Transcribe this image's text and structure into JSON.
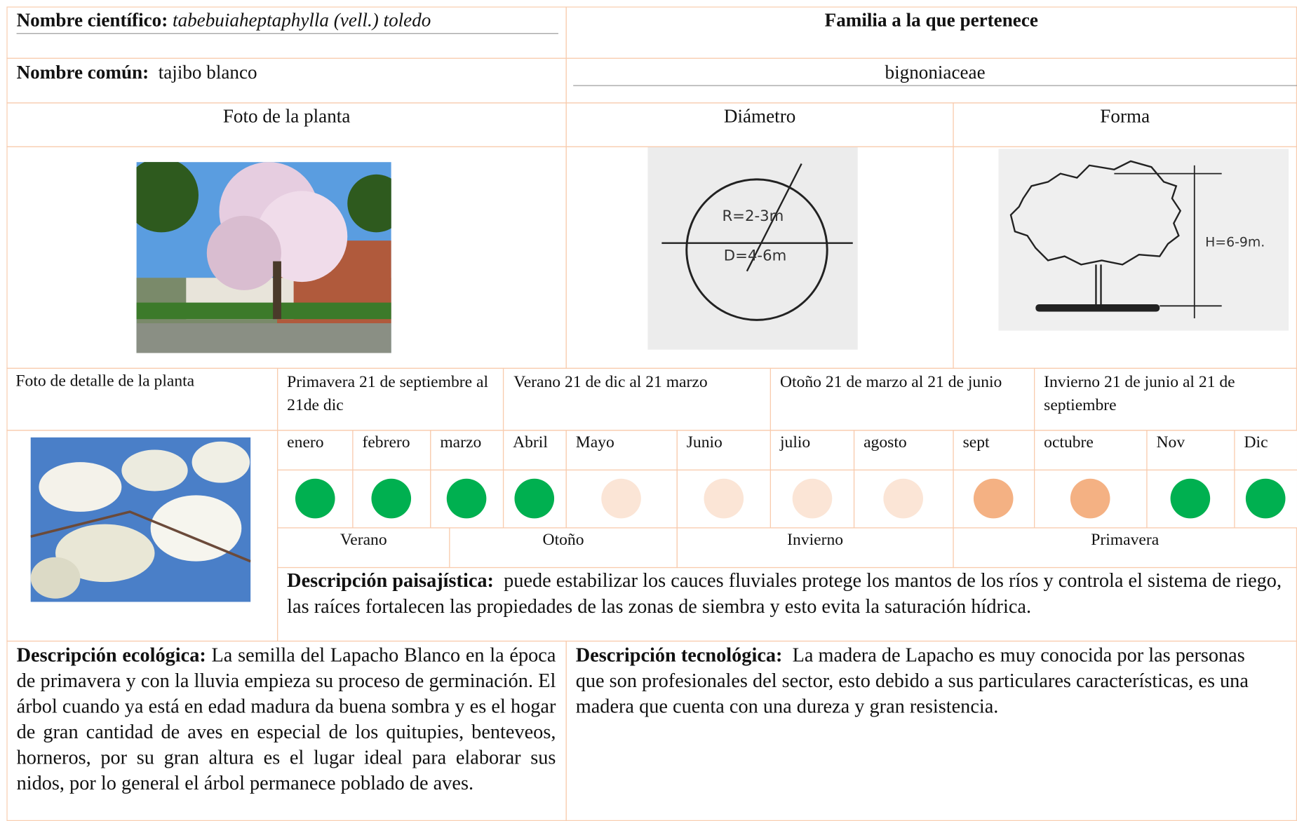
{
  "scientific_name": {
    "label": "Nombre científico:",
    "value": "tabebuiaheptaphylla (vell.) toledo"
  },
  "family": {
    "label": "Familia a la que pertenece",
    "value": "bignoniaceae"
  },
  "common_name": {
    "label": "Nombre común:",
    "value": "tajibo blanco"
  },
  "headers": {
    "photo": "Foto de la planta",
    "diameter": "Diámetro",
    "shape": "Forma",
    "detail_photo": "Foto de detalle de la planta"
  },
  "diameter_figure": {
    "radius": "R=2-3m",
    "diameter": "D=4-6m"
  },
  "shape_figure": {
    "height": "H=6-9m."
  },
  "seasons": [
    "Primavera 21 de septiembre al 21de dic",
    "Verano 21 de dic al 21 marzo",
    "Otoño 21 de marzo al 21 de junio",
    "Invierno 21 de junio al 21 de septiembre"
  ],
  "months": [
    {
      "name": "enero",
      "color": "#00b050"
    },
    {
      "name": "febrero",
      "color": "#00b050"
    },
    {
      "name": "marzo",
      "color": "#00b050"
    },
    {
      "name": "Abril",
      "color": "#00b050"
    },
    {
      "name": "Mayo",
      "color": "#fbe5d6"
    },
    {
      "name": "Junio",
      "color": "#fbe5d6"
    },
    {
      "name": "julio",
      "color": "#fbe5d6"
    },
    {
      "name": "agosto",
      "color": "#fbe5d6"
    },
    {
      "name": "sept",
      "color": "#f4b183"
    },
    {
      "name": "octubre",
      "color": "#f4b183"
    },
    {
      "name": "Nov",
      "color": "#00b050"
    },
    {
      "name": "Dic",
      "color": "#00b050"
    }
  ],
  "season_row": [
    "Verano",
    "Otoño",
    "Invierno",
    "Primavera"
  ],
  "landscape": {
    "label": "Descripción paisajística:",
    "text": "puede estabilizar los cauces fluviales protege los mantos de los ríos y controla el sistema de riego, las raíces fortalecen las propiedades de las zonas de siembra y esto evita la saturación hídrica."
  },
  "ecological": {
    "label": "Descripción ecológica:",
    "text": "La semilla del Lapacho Blanco en la época de primavera y con la lluvia empieza su proceso de germinación. El árbol cuando ya está en edad madura da buena sombra y es el hogar de gran cantidad de aves en especial de los quitupies, benteveos, horneros, por su gran altura es el lugar ideal para elaborar sus nidos, por lo general el árbol permanece poblado de aves."
  },
  "technological": {
    "label": "Descripción tecnológica:",
    "text": "La madera de Lapacho es muy conocida por las personas que son profesionales del sector, esto debido a sus particulares características, es una madera que cuenta con una dureza y gran resistencia."
  }
}
